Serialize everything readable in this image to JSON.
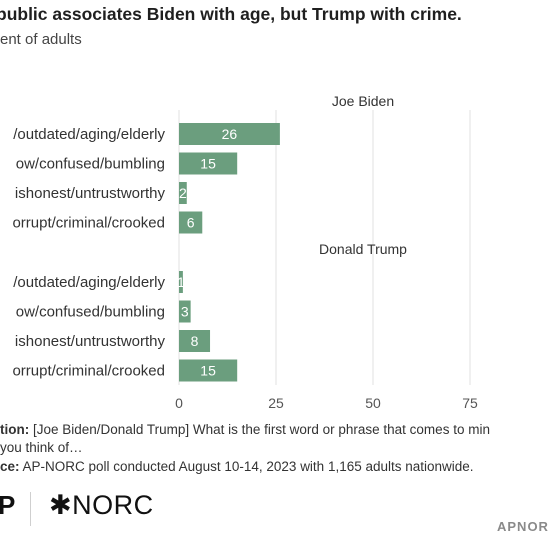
{
  "header": {
    "title": "public associates Biden with age, but Trump with crime.",
    "subtitle": "ent of adults"
  },
  "chart_data": {
    "type": "bar",
    "orientation": "horizontal",
    "xlim": [
      0,
      90
    ],
    "xticks": [
      0,
      25,
      50,
      75
    ],
    "grid": true,
    "bar_color": "#6b9e7e",
    "panels": [
      {
        "name": "Joe Biden",
        "categories": [
          "/outdated/aging/elderly",
          "ow/confused/bumbling",
          "ishonest/untrustworthy",
          "orrupt/criminal/crooked"
        ],
        "values": [
          26,
          15,
          2,
          6
        ]
      },
      {
        "name": "Donald Trump",
        "categories": [
          "/outdated/aging/elderly",
          "ow/confused/bumbling",
          "ishonest/untrustworthy",
          "orrupt/criminal/crooked"
        ],
        "values": [
          1,
          3,
          8,
          15
        ]
      }
    ]
  },
  "notes": {
    "question_label": "tion:",
    "question_text": " [Joe Biden/Donald Trump] What is the first word or phrase that comes to min",
    "question_cont": " you think of…",
    "source_label": "ce:",
    "source_text": " AP-NORC poll conducted August 10-14, 2023 with 1,165 adults nationwide."
  },
  "footer": {
    "ap_letter": "P",
    "norc": "✱NORC",
    "apnorc": "APNOR"
  }
}
